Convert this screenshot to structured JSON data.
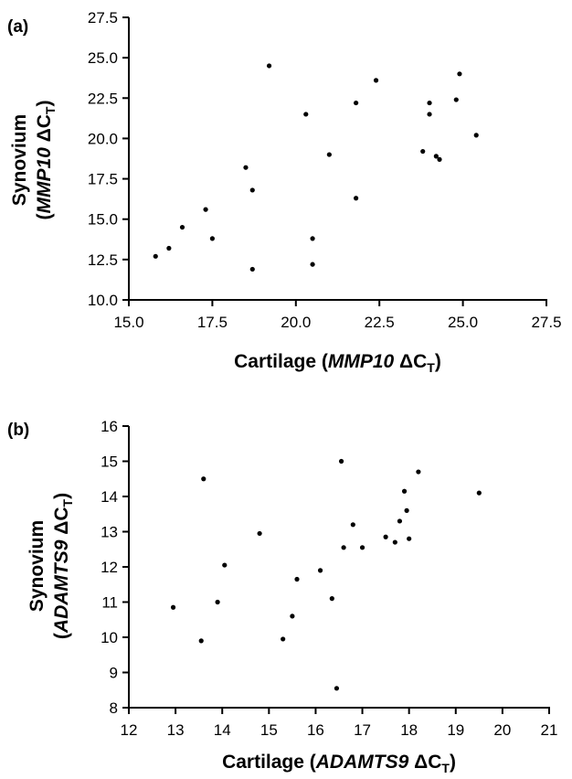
{
  "panels": [
    {
      "label": "(a)"
    },
    {
      "label": "(b)"
    }
  ],
  "chart_data": [
    {
      "type": "scatter",
      "xlabel": {
        "prefix": "Cartilage (",
        "gene": "MMP10",
        "suffix": " ΔC",
        "sub": "T",
        "close": ")"
      },
      "ylabel": {
        "line1": "Synovium",
        "open": "(",
        "gene": "MMP10",
        "suffix": " ΔC",
        "sub": "T",
        "close": ")"
      },
      "xlim": [
        15.0,
        27.5
      ],
      "ylim": [
        10.0,
        27.5
      ],
      "xticks": [
        "15.0",
        "17.5",
        "20.0",
        "22.5",
        "25.0",
        "27.5"
      ],
      "yticks": [
        "10.0",
        "12.5",
        "15.0",
        "17.5",
        "20.0",
        "22.5",
        "25.0",
        "27.5"
      ],
      "grid": false,
      "points": [
        {
          "x": 15.8,
          "y": 12.7
        },
        {
          "x": 16.2,
          "y": 13.2
        },
        {
          "x": 16.6,
          "y": 14.5
        },
        {
          "x": 17.3,
          "y": 15.6
        },
        {
          "x": 17.5,
          "y": 13.8
        },
        {
          "x": 18.5,
          "y": 18.2
        },
        {
          "x": 18.7,
          "y": 16.8
        },
        {
          "x": 18.7,
          "y": 11.9
        },
        {
          "x": 19.2,
          "y": 24.5
        },
        {
          "x": 20.3,
          "y": 21.5
        },
        {
          "x": 20.5,
          "y": 13.8
        },
        {
          "x": 20.5,
          "y": 12.2
        },
        {
          "x": 21.0,
          "y": 19.0
        },
        {
          "x": 21.8,
          "y": 22.2
        },
        {
          "x": 21.8,
          "y": 16.3
        },
        {
          "x": 22.4,
          "y": 23.6
        },
        {
          "x": 23.8,
          "y": 19.2
        },
        {
          "x": 24.0,
          "y": 22.2
        },
        {
          "x": 24.0,
          "y": 21.5
        },
        {
          "x": 24.2,
          "y": 18.9
        },
        {
          "x": 24.3,
          "y": 18.7
        },
        {
          "x": 24.8,
          "y": 22.4
        },
        {
          "x": 24.9,
          "y": 24.0
        },
        {
          "x": 25.4,
          "y": 20.2
        }
      ]
    },
    {
      "type": "scatter",
      "xlabel": {
        "prefix": "Cartilage (",
        "gene": "ADAMTS9",
        "suffix": " ΔC",
        "sub": "T",
        "close": ")"
      },
      "ylabel": {
        "line1": "Synovium",
        "open": "(",
        "gene": "ADAMTS9",
        "suffix": " ΔC",
        "sub": "T",
        "close": ")"
      },
      "xlim": [
        12,
        21
      ],
      "ylim": [
        8,
        16
      ],
      "xticks": [
        "12",
        "13",
        "14",
        "15",
        "16",
        "17",
        "18",
        "19",
        "20",
        "21"
      ],
      "yticks": [
        "8",
        "9",
        "10",
        "11",
        "12",
        "13",
        "14",
        "15",
        "16"
      ],
      "grid": false,
      "points": [
        {
          "x": 12.95,
          "y": 10.85
        },
        {
          "x": 13.55,
          "y": 9.9
        },
        {
          "x": 13.6,
          "y": 14.5
        },
        {
          "x": 13.9,
          "y": 11.0
        },
        {
          "x": 14.05,
          "y": 12.05
        },
        {
          "x": 14.8,
          "y": 12.95
        },
        {
          "x": 15.3,
          "y": 9.95
        },
        {
          "x": 15.5,
          "y": 10.6
        },
        {
          "x": 15.6,
          "y": 11.65
        },
        {
          "x": 16.1,
          "y": 11.9
        },
        {
          "x": 16.35,
          "y": 11.1
        },
        {
          "x": 16.45,
          "y": 8.55
        },
        {
          "x": 16.55,
          "y": 15.0
        },
        {
          "x": 16.6,
          "y": 12.55
        },
        {
          "x": 16.8,
          "y": 13.2
        },
        {
          "x": 17.0,
          "y": 12.55
        },
        {
          "x": 17.5,
          "y": 12.85
        },
        {
          "x": 17.7,
          "y": 12.7
        },
        {
          "x": 17.8,
          "y": 13.3
        },
        {
          "x": 17.9,
          "y": 14.15
        },
        {
          "x": 17.95,
          "y": 13.6
        },
        {
          "x": 18.0,
          "y": 12.8
        },
        {
          "x": 18.2,
          "y": 14.7
        },
        {
          "x": 19.5,
          "y": 14.1
        }
      ]
    }
  ]
}
